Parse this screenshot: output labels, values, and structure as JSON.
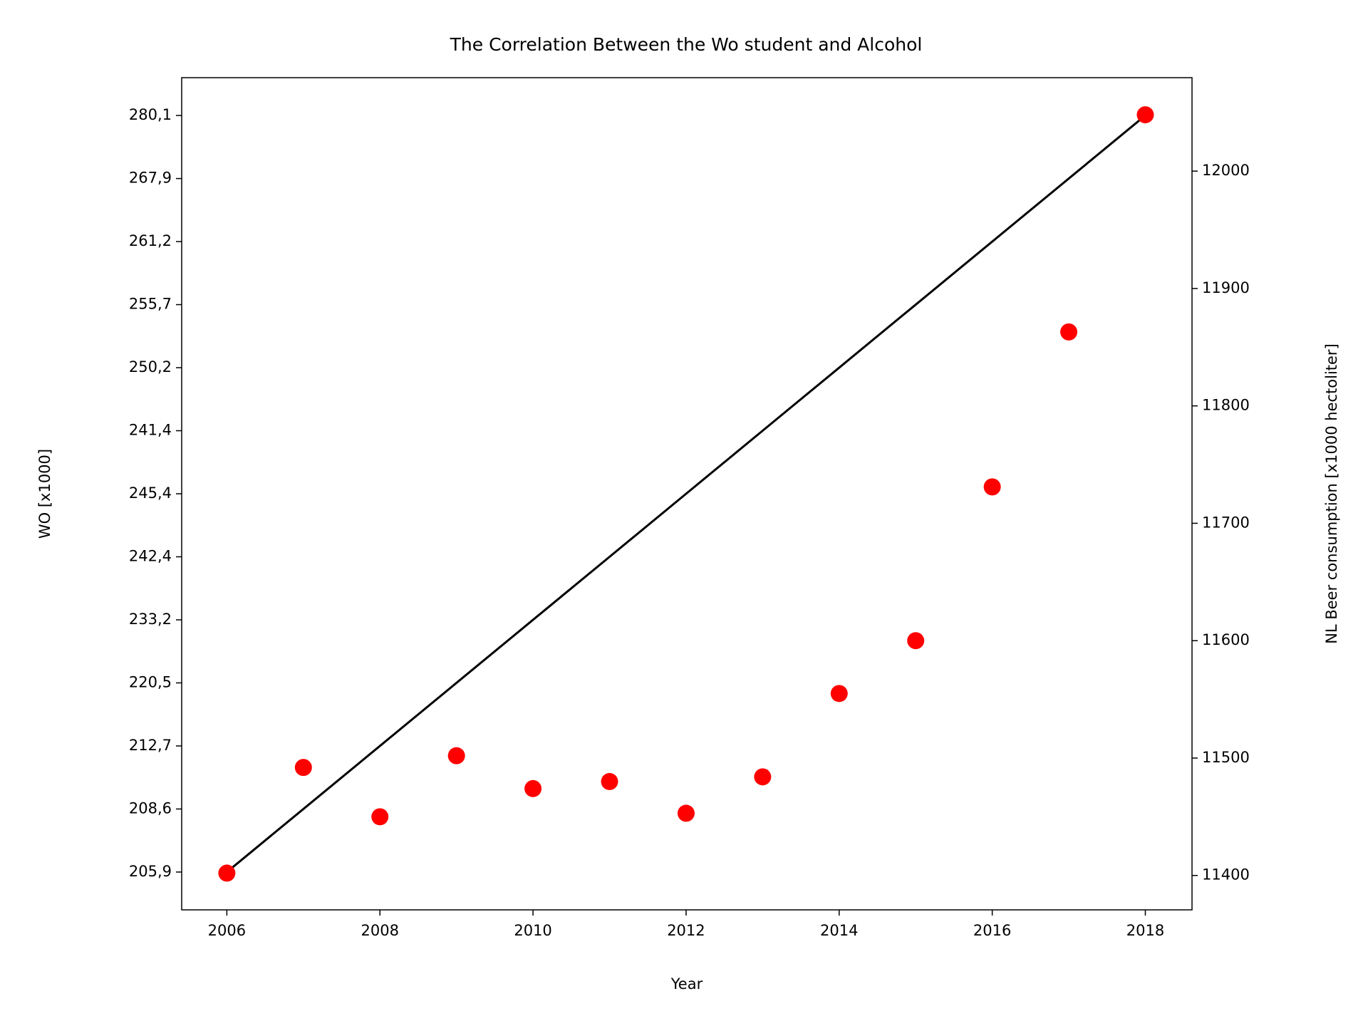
{
  "chart_data": {
    "type": "dual_axis_line_scatter",
    "title": "The Correlation Between the Wo student and Alcohol",
    "xlabel": "Year",
    "ylabel": "WO [x1000]",
    "y2label": "NL Beer consumption [x1000 hectoliter]",
    "y2label_color": "#ff0000",
    "x": [
      2006,
      2007,
      2008,
      2009,
      2010,
      2011,
      2012,
      2013,
      2014,
      2015,
      2016,
      2017,
      2018
    ],
    "xlim": [
      2005.41,
      2018.61
    ],
    "xticks": [
      2006,
      2008,
      2010,
      2012,
      2014,
      2016,
      2018
    ],
    "ylim": [
      -0.6,
      12.6
    ],
    "y2lim": [
      11370.7,
      12079.6
    ],
    "y2ticks": [
      11400,
      11500,
      11600,
      11700,
      11800,
      11900,
      12000
    ],
    "series": [
      {
        "type": "line",
        "color": "#000000",
        "axis": "y",
        "values": [
          "205,9",
          "208,6",
          "212,7",
          "220,5",
          "233,2",
          "242,4",
          "245,4",
          "241,4",
          "250,2",
          "255,7",
          "261,2",
          "267,9",
          "280,1"
        ]
      },
      {
        "type": "scatter",
        "color": "#ff0000",
        "axis": "y2",
        "values": [
          11402,
          11492,
          11450,
          11502,
          11474,
          11480,
          11453,
          11484,
          11555,
          11600,
          11731,
          11863,
          12048
        ]
      }
    ]
  }
}
